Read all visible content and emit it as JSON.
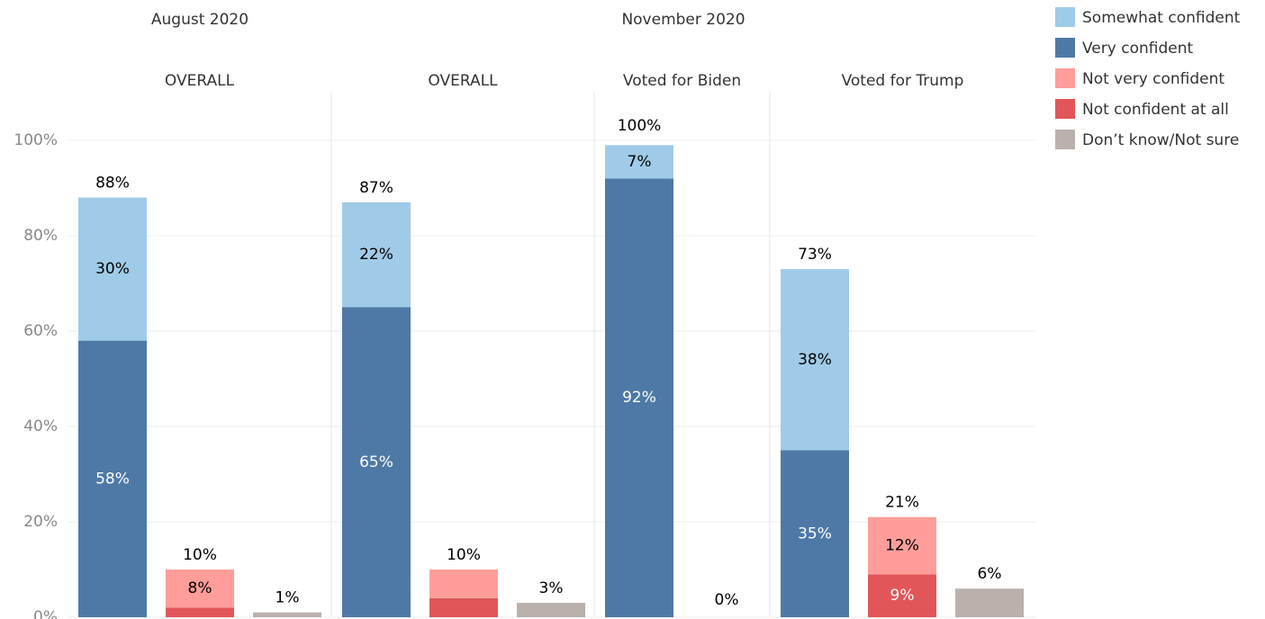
{
  "chart_data": {
    "type": "bar",
    "stacked": true,
    "groups": [
      {
        "title": "August 2020",
        "panels": [
          {
            "title": "OVERALL"
          }
        ]
      },
      {
        "title": "November 2020",
        "panels": [
          {
            "title": "OVERALL"
          },
          {
            "title": "Voted for Biden"
          },
          {
            "title": "Voted for Trump"
          }
        ]
      }
    ],
    "series": [
      {
        "name": "Somewhat confident",
        "color": "#a0cbe8",
        "values": [
          30,
          null,
          null,
          22,
          null,
          null,
          7,
          null,
          38,
          null,
          null
        ],
        "value_labels": [
          "30%",
          null,
          null,
          "22%",
          null,
          null,
          "7%",
          null,
          "38%",
          null,
          null
        ]
      },
      {
        "name": "Very confident",
        "color": "#4e79a7",
        "values": [
          58,
          null,
          null,
          65,
          null,
          null,
          92,
          null,
          35,
          null,
          null
        ],
        "value_labels": [
          "58%",
          null,
          null,
          "65%",
          null,
          null,
          "92%",
          null,
          "35%",
          null,
          null
        ]
      },
      {
        "name": "Not very confident",
        "color": "#ff9d9a",
        "values": [
          null,
          8,
          null,
          null,
          6,
          null,
          null,
          0,
          null,
          12,
          null
        ],
        "value_labels": [
          null,
          "8%",
          null,
          null,
          null,
          null,
          null,
          null,
          null,
          "12%",
          null
        ]
      },
      {
        "name": "Not confident at all",
        "color": "#e15759",
        "values": [
          null,
          2,
          null,
          null,
          4,
          null,
          null,
          0,
          null,
          9,
          null
        ],
        "value_labels": [
          null,
          null,
          null,
          null,
          null,
          null,
          null,
          null,
          null,
          "9%",
          null
        ]
      },
      {
        "name": "Don’t know/Not sure",
        "color": "#bab0ac",
        "values": [
          null,
          null,
          1,
          null,
          null,
          3,
          null,
          null,
          null,
          null,
          6
        ],
        "value_labels": [
          null,
          null,
          "1%",
          null,
          null,
          "3%",
          null,
          null,
          null,
          null,
          "6%"
        ]
      }
    ],
    "totals": [
      88,
      10,
      null,
      87,
      10,
      null,
      100,
      0,
      73,
      21,
      null
    ],
    "total_labels": [
      "88%",
      "10%",
      null,
      "87%",
      "10%",
      null,
      "100%",
      "0%",
      "73%",
      "21%",
      null
    ],
    "ylim": [
      0,
      110
    ],
    "yticks": [
      {
        "value": 0,
        "label": "0%"
      },
      {
        "value": 20,
        "label": "20%"
      },
      {
        "value": 40,
        "label": "40%"
      },
      {
        "value": 60,
        "label": "60%"
      },
      {
        "value": 80,
        "label": "80%"
      },
      {
        "value": 100,
        "label": "100%"
      }
    ],
    "grid": true
  }
}
